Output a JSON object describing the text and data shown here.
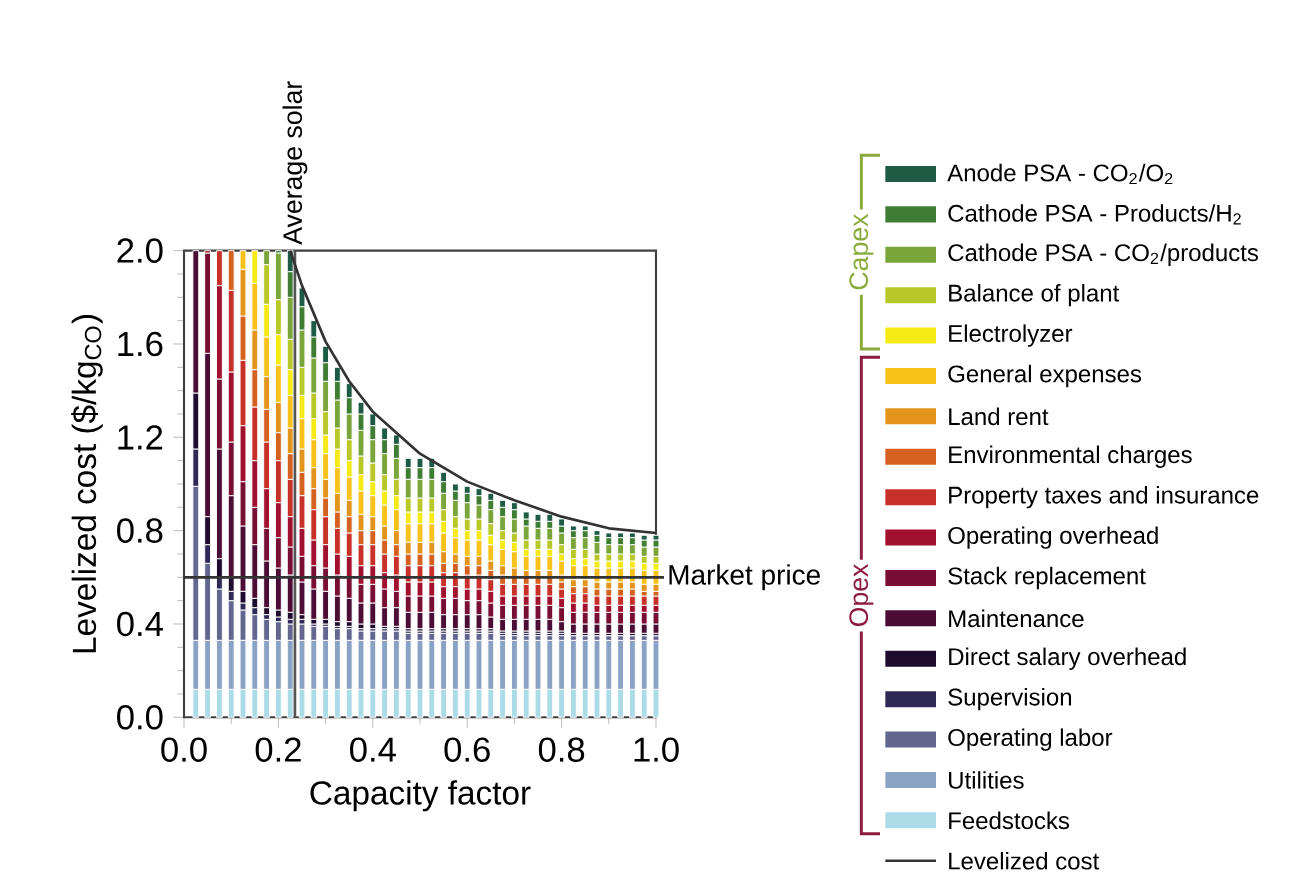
{
  "chart_data": {
    "type": "bar",
    "stacked": true,
    "xlabel": "Capacity factor",
    "ylabel": "Levelized cost ($/kg$_{CO}$)",
    "legend": "right",
    "x": [
      0.025,
      0.05,
      0.075,
      0.1,
      0.125,
      0.15,
      0.175,
      0.2,
      0.225,
      0.25,
      0.275,
      0.3,
      0.325,
      0.35,
      0.375,
      0.4,
      0.425,
      0.45,
      0.475,
      0.5,
      0.525,
      0.55,
      0.575,
      0.6,
      0.625,
      0.65,
      0.675,
      0.7,
      0.725,
      0.75,
      0.775,
      0.8,
      0.825,
      0.85,
      0.875,
      0.9,
      0.925,
      0.95,
      0.975,
      1.0
    ],
    "xlim": [
      0,
      1.0
    ],
    "ylim": [
      0,
      2.0
    ],
    "xticks": [
      {
        "value": 0,
        "label": "0.0"
      },
      {
        "value": 0.2,
        "label": "0.2"
      },
      {
        "value": 0.4,
        "label": "0.4"
      },
      {
        "value": 0.6,
        "label": "0.6"
      },
      {
        "value": 0.8,
        "label": "0.8"
      },
      {
        "value": 1.0,
        "label": "1.0"
      }
    ],
    "yticks": [
      {
        "value": 0,
        "label": "0.0"
      },
      {
        "value": 0.4,
        "label": "0.4"
      },
      {
        "value": 0.8,
        "label": "0.8"
      },
      {
        "value": 1.2,
        "label": "1.2"
      },
      {
        "value": 1.6,
        "label": "1.6"
      },
      {
        "value": 2.0,
        "label": "2.0"
      }
    ],
    "series": [
      {
        "name": "Feedstocks",
        "color": "#acdbe8",
        "values": [
          0.12,
          0.12,
          0.12,
          0.12,
          0.12,
          0.12,
          0.12,
          0.12,
          0.12,
          0.12,
          0.12,
          0.12,
          0.12,
          0.12,
          0.12,
          0.12,
          0.12,
          0.12,
          0.12,
          0.12,
          0.12,
          0.12,
          0.12,
          0.12,
          0.12,
          0.12,
          0.12,
          0.12,
          0.12,
          0.12,
          0.12,
          0.12,
          0.12,
          0.12,
          0.12,
          0.12,
          0.12,
          0.12,
          0.12,
          0.12
        ]
      },
      {
        "name": "Utilities",
        "color": "#8aa3c4",
        "values": [
          0.21,
          0.21,
          0.21,
          0.21,
          0.21,
          0.21,
          0.21,
          0.21,
          0.21,
          0.21,
          0.21,
          0.21,
          0.21,
          0.21,
          0.21,
          0.21,
          0.21,
          0.21,
          0.21,
          0.21,
          0.21,
          0.21,
          0.21,
          0.21,
          0.21,
          0.21,
          0.21,
          0.21,
          0.21,
          0.21,
          0.21,
          0.21,
          0.21,
          0.21,
          0.21,
          0.21,
          0.21,
          0.21,
          0.21,
          0.21
        ]
      },
      {
        "name": "Operating labor",
        "color": "#63678f",
        "values": [
          0.66,
          0.33,
          0.22,
          0.17,
          0.13,
          0.11,
          0.09,
          0.08,
          0.07,
          0.07,
          0.06,
          0.06,
          0.05,
          0.05,
          0.04,
          0.04,
          0.04,
          0.04,
          0.03,
          0.03,
          0.03,
          0.03,
          0.03,
          0.03,
          0.03,
          0.03,
          0.02,
          0.02,
          0.02,
          0.02,
          0.02,
          0.02,
          0.02,
          0.02,
          0.02,
          0.02,
          0.02,
          0.02,
          0.02,
          0.02
        ]
      },
      {
        "name": "Supervision",
        "color": "#2e2a55",
        "values": [
          0.16,
          0.08,
          0.05,
          0.04,
          0.03,
          0.03,
          0.02,
          0.02,
          0.02,
          0.02,
          0.01,
          0.01,
          0.01,
          0.01,
          0.01,
          0.01,
          0.01,
          0.01,
          0.01,
          0.01,
          0.01,
          0.01,
          0.01,
          0.01,
          0.01,
          0.01,
          0.01,
          0.01,
          0.01,
          0.01,
          0.01,
          0.01,
          0,
          0,
          0,
          0,
          0,
          0,
          0,
          0
        ]
      },
      {
        "name": "Direct salary overhead",
        "color": "#1e0b2e",
        "values": [
          0.24,
          0.12,
          0.08,
          0.06,
          0.05,
          0.04,
          0.03,
          0.03,
          0.03,
          0.02,
          0.02,
          0.02,
          0.02,
          0.02,
          0.02,
          0.02,
          0.01,
          0.01,
          0.01,
          0.01,
          0.01,
          0.01,
          0.01,
          0.01,
          0.01,
          0.01,
          0.01,
          0.01,
          0.01,
          0.01,
          0.01,
          0.01,
          0.01,
          0.01,
          0.01,
          0.01,
          0.01,
          0.01,
          0.01,
          0.01
        ]
      },
      {
        "name": "Maintenance",
        "color": "#4b0d35",
        "values": [
          0.61,
          0.7,
          0.47,
          0.35,
          0.28,
          0.23,
          0.2,
          0.18,
          0.16,
          0.14,
          0.13,
          0.12,
          0.11,
          0.1,
          0.09,
          0.09,
          0.08,
          0.08,
          0.07,
          0.07,
          0.07,
          0.06,
          0.06,
          0.06,
          0.06,
          0.05,
          0.05,
          0.05,
          0.05,
          0.05,
          0.05,
          0.04,
          0.04,
          0.04,
          0.04,
          0.04,
          0.04,
          0.04,
          0.04,
          0.04
        ]
      },
      {
        "name": "Stack replacement",
        "color": "#780e34",
        "values": [
          null,
          0.43,
          0.3,
          0.23,
          0.19,
          0.16,
          0.14,
          0.13,
          0.12,
          0.11,
          0.1,
          0.1,
          0.09,
          0.09,
          0.08,
          0.08,
          0.08,
          0.07,
          0.07,
          0.07,
          0.07,
          0.07,
          0.07,
          0.06,
          0.06,
          0.06,
          0.06,
          0.06,
          0.06,
          0.06,
          0.06,
          0.06,
          0.05,
          0.05,
          0.05,
          0.05,
          0.05,
          0.05,
          0.05,
          0.05
        ]
      },
      {
        "name": "Operating overhead",
        "color": "#a1102e",
        "values": [
          null,
          0.01,
          0.4,
          0.3,
          0.24,
          0.2,
          0.17,
          0.15,
          0.13,
          0.12,
          0.11,
          0.1,
          0.09,
          0.09,
          0.08,
          0.08,
          0.07,
          0.07,
          0.06,
          0.06,
          0.06,
          0.05,
          0.05,
          0.05,
          0.05,
          0.05,
          0.04,
          0.04,
          0.04,
          0.04,
          0.04,
          0.04,
          0.04,
          0.04,
          0.03,
          0.03,
          0.03,
          0.03,
          0.03,
          0.03
        ]
      },
      {
        "name": "Property taxes and insurance",
        "color": "#c8312a",
        "values": [
          null,
          null,
          0.15,
          0.35,
          0.28,
          0.23,
          0.2,
          0.18,
          0.16,
          0.14,
          0.13,
          0.12,
          0.11,
          0.1,
          0.09,
          0.09,
          0.08,
          0.08,
          0.07,
          0.07,
          0.07,
          0.06,
          0.06,
          0.06,
          0.06,
          0.05,
          0.05,
          0.05,
          0.05,
          0.05,
          0.05,
          0.04,
          0.04,
          0.04,
          0.04,
          0.04,
          0.04,
          0.04,
          0.04,
          0.04
        ]
      },
      {
        "name": "Environmental charges",
        "color": "#d4611f",
        "values": [
          null,
          null,
          null,
          0.17,
          0.19,
          0.16,
          0.14,
          0.12,
          0.11,
          0.1,
          0.09,
          0.08,
          0.07,
          0.07,
          0.06,
          0.06,
          0.06,
          0.05,
          0.05,
          0.05,
          0.05,
          0.04,
          0.04,
          0.04,
          0.04,
          0.04,
          0.04,
          0.03,
          0.03,
          0.03,
          0.03,
          0.03,
          0.03,
          0.03,
          0.03,
          0.03,
          0.03,
          0.03,
          0.02,
          0.02
        ]
      },
      {
        "name": "Land rent",
        "color": "#e3941c",
        "values": [
          null,
          null,
          null,
          null,
          0.2,
          0.17,
          0.14,
          0.13,
          0.11,
          0.1,
          0.09,
          0.08,
          0.08,
          0.07,
          0.07,
          0.06,
          0.06,
          0.06,
          0.05,
          0.05,
          0.05,
          0.05,
          0.04,
          0.04,
          0.04,
          0.04,
          0.04,
          0.04,
          0.03,
          0.03,
          0.03,
          0.03,
          0.03,
          0.03,
          0.03,
          0.03,
          0.03,
          0.03,
          0.03,
          0.03
        ]
      },
      {
        "name": "General expenses",
        "color": "#f8c21b",
        "values": [
          null,
          null,
          null,
          null,
          0.08,
          0.2,
          0.17,
          0.16,
          0.14,
          0.13,
          0.12,
          0.11,
          0.11,
          0.1,
          0.1,
          0.09,
          0.09,
          0.09,
          0.08,
          0.08,
          0.08,
          0.08,
          0.07,
          0.07,
          0.07,
          0.07,
          0.07,
          0.07,
          0.06,
          0.06,
          0.06,
          0.06,
          0.06,
          0.06,
          0.06,
          0.06,
          0.06,
          0.06,
          0.06,
          0.06
        ]
      },
      {
        "name": "Electrolyzer",
        "color": "#f6ea16",
        "values": [
          null,
          null,
          null,
          null,
          null,
          0.14,
          0.14,
          0.13,
          0.11,
          0.1,
          0.09,
          0.08,
          0.08,
          0.07,
          0.07,
          0.06,
          0.06,
          0.06,
          0.05,
          0.05,
          0.05,
          0.05,
          0.04,
          0.04,
          0.04,
          0.04,
          0.04,
          0.04,
          0.03,
          0.03,
          0.03,
          0.03,
          0.03,
          0.03,
          0.03,
          0.03,
          0.03,
          0.03,
          0.03,
          0.03
        ]
      },
      {
        "name": "Balance of plant",
        "color": "#b9c829",
        "values": [
          null,
          null,
          null,
          null,
          null,
          null,
          0.17,
          0.15,
          0.13,
          0.12,
          0.11,
          0.1,
          0.09,
          0.09,
          0.08,
          0.08,
          0.07,
          0.07,
          0.06,
          0.06,
          0.06,
          0.05,
          0.05,
          0.05,
          0.05,
          0.05,
          0.04,
          0.04,
          0.04,
          0.04,
          0.04,
          0.04,
          0.04,
          0.04,
          0.03,
          0.03,
          0.03,
          0.03,
          0.03,
          0.03
        ]
      },
      {
        "name": "Cathode PSA - CO$_{2}$/products",
        "color": "#7aa53a",
        "values": [
          null,
          null,
          null,
          null,
          null,
          null,
          0.06,
          0.2,
          0.18,
          0.16,
          0.15,
          0.13,
          0.12,
          0.11,
          0.11,
          0.1,
          0.09,
          0.09,
          0.08,
          0.08,
          0.08,
          0.07,
          0.07,
          0.07,
          0.06,
          0.06,
          0.06,
          0.06,
          0.06,
          0.05,
          0.05,
          0.05,
          0.05,
          0.05,
          0.05,
          0.04,
          0.04,
          0.04,
          0.04,
          0.04
        ]
      },
      {
        "name": "Cathode PSA - Products/H$_{2}$",
        "color": "#3e7d33",
        "values": [
          null,
          null,
          null,
          null,
          null,
          null,
          null,
          0.01,
          0.11,
          0.1,
          0.09,
          0.08,
          0.08,
          0.07,
          0.07,
          0.06,
          0.06,
          0.06,
          0.05,
          0.05,
          0.05,
          0.05,
          0.04,
          0.04,
          0.04,
          0.04,
          0.04,
          0.04,
          0.03,
          0.03,
          0.03,
          0.03,
          0.03,
          0.03,
          0.03,
          0.03,
          0.03,
          0.03,
          0.03,
          0.03
        ]
      },
      {
        "name": "Anode PSA - CO$_{2}$/O$_{2}$",
        "color": "#1d5b45",
        "values": [
          null,
          null,
          null,
          null,
          null,
          null,
          null,
          null,
          0.09,
          0.08,
          0.07,
          0.07,
          0.06,
          0.06,
          0.05,
          0.05,
          0.05,
          0.04,
          0.04,
          0.04,
          0.04,
          0.04,
          0.03,
          0.03,
          0.03,
          0.03,
          0.03,
          0.03,
          0.03,
          0.03,
          0.03,
          0.03,
          0.02,
          0.02,
          0.02,
          0.02,
          0.02,
          0.02,
          0.02,
          0.02
        ]
      },
      {
        "name": "Levelized cost",
        "type": "line",
        "color": "#333333",
        "x": [
          0.225,
          0.25,
          0.3,
          0.35,
          0.4,
          0.45,
          0.5,
          0.6,
          0.7,
          0.8,
          0.9,
          1.0
        ],
        "values": [
          2.0,
          1.85,
          1.61,
          1.44,
          1.31,
          1.22,
          1.13,
          1.01,
          0.93,
          0.86,
          0.81,
          0.79
        ]
      }
    ],
    "ref_lines": [
      {
        "axis": "x",
        "value": 0.235,
        "label": "Average solar",
        "color": "#555555"
      },
      {
        "axis": "y",
        "value": 0.6,
        "label": "Market price",
        "color": "#333333"
      }
    ],
    "annotations": [
      "Capex",
      "Opex"
    ]
  }
}
